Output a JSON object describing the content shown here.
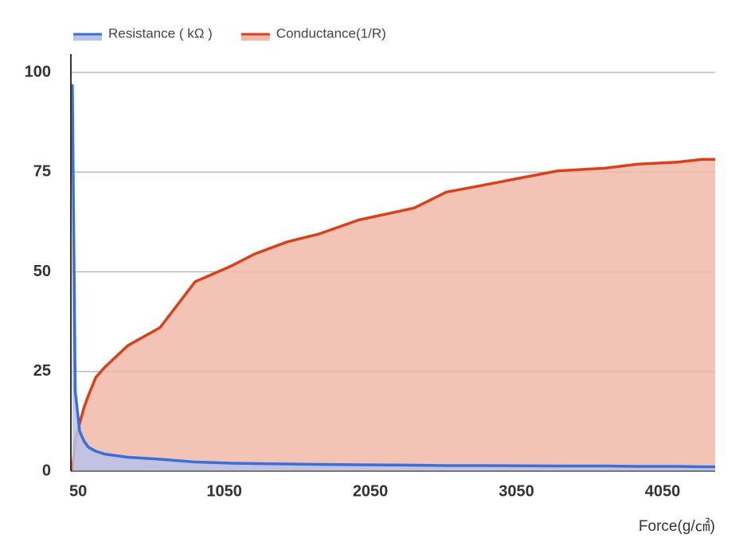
{
  "chart_data": {
    "type": "area",
    "x_label": "Force(g/㎠)",
    "x": [
      10,
      30,
      60,
      90,
      120,
      170,
      230,
      390,
      610,
      850,
      1100,
      1260,
      1480,
      1700,
      1970,
      2350,
      2570,
      2790,
      3330,
      3660,
      3880,
      4150,
      4320,
      4410
    ],
    "series": [
      {
        "name": "Resistance ( kΩ )",
        "color": "#3b6fd8",
        "fill": "#b9c3ea",
        "values": [
          97,
          20,
          10,
          7.5,
          6,
          5,
          4.3,
          3.5,
          3,
          2.3,
          2,
          1.9,
          1.8,
          1.7,
          1.6,
          1.5,
          1.4,
          1.4,
          1.3,
          1.3,
          1.2,
          1.2,
          1.1,
          1.1
        ]
      },
      {
        "name": "Conductance(1/R)",
        "color": "#d9411a",
        "fill": "#f1b8a8",
        "values": [
          0,
          8,
          12,
          16,
          19,
          23.5,
          26,
          31.5,
          36,
          47.5,
          51.5,
          54.5,
          57.5,
          59.5,
          63,
          66,
          70,
          71.5,
          75.3,
          76,
          77,
          77.5,
          78.2,
          78.2
        ]
      }
    ],
    "xlim": [
      0,
      4410
    ],
    "xticks": [
      50,
      1050,
      2050,
      3050,
      4050
    ],
    "ylim": [
      0,
      100
    ],
    "yticks": [
      0,
      25,
      50,
      75,
      100
    ],
    "grid": true,
    "legend": "top-left"
  }
}
